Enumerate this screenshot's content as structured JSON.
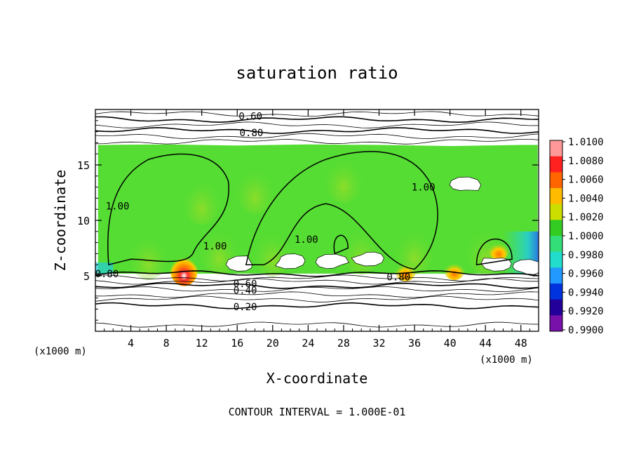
{
  "chart_data": {
    "type": "heatmap",
    "title": "saturation ratio",
    "xlabel": "X-coordinate",
    "ylabel": "Z-coordinate",
    "x_unit_label": "(x1000 m)",
    "y_unit_label": "(x1000 m)",
    "xlim": [
      0,
      50
    ],
    "ylim": [
      0,
      20
    ],
    "x_ticks": [
      "4",
      "8",
      "12",
      "16",
      "20",
      "24",
      "28",
      "32",
      "36",
      "40",
      "44",
      "48"
    ],
    "y_ticks": [
      "5",
      "10",
      "15"
    ],
    "footer": "CONTOUR INTERVAL = 1.000E-01",
    "colorbar": {
      "levels": [
        "1.0100",
        "1.0080",
        "1.0060",
        "1.0040",
        "1.0020",
        "1.0000",
        "0.9980",
        "0.9960",
        "0.9940",
        "0.9920",
        "0.9900"
      ],
      "colors": [
        "#ff9999",
        "#ff2020",
        "#ff6600",
        "#ffbb00",
        "#ccdd00",
        "#33cc22",
        "#33dd77",
        "#22ddcc",
        "#2299ff",
        "#0033dd",
        "#220099",
        "#7711aa"
      ]
    },
    "field_color_default": "#55dd33",
    "contour_labels": [
      {
        "text": "0.60",
        "x": 17.5,
        "y": 19.4
      },
      {
        "text": "0.80",
        "x": 17.6,
        "y": 17.9
      },
      {
        "text": "1.00",
        "x": 2.5,
        "y": 11.3
      },
      {
        "text": "1.00",
        "x": 37.0,
        "y": 13.0
      },
      {
        "text": "1.00",
        "x": 23.8,
        "y": 8.3
      },
      {
        "text": "1.00",
        "x": 13.5,
        "y": 7.7
      },
      {
        "text": "0.80",
        "x": 1.3,
        "y": 5.2
      },
      {
        "text": "0.80",
        "x": 34.2,
        "y": 4.9
      },
      {
        "text": "0.60",
        "x": 16.9,
        "y": 4.3
      },
      {
        "text": "0.40",
        "x": 16.9,
        "y": 3.7
      },
      {
        "text": "0.20",
        "x": 16.9,
        "y": 2.2
      }
    ],
    "horizontal_contours_z": [
      19.6,
      19.1,
      18.6,
      18.1,
      17.6,
      17.1,
      5.2,
      4.8,
      4.5,
      4.1,
      3.8,
      3.3,
      2.9,
      2.3,
      0.6
    ],
    "hotspots": [
      {
        "x": 10.0,
        "z": 5.6,
        "level": "1.0100"
      },
      {
        "x": 40.5,
        "z": 5.5,
        "level": "1.0060"
      },
      {
        "x": 45.5,
        "z": 7.3,
        "level": "1.0040"
      },
      {
        "x": 35.0,
        "z": 5.4,
        "level": "1.0040"
      }
    ],
    "subsaturated_patches": [
      {
        "x": 16.5,
        "z": 6.0
      },
      {
        "x": 22.0,
        "z": 6.4
      },
      {
        "x": 26.5,
        "z": 6.2
      },
      {
        "x": 31.0,
        "z": 6.6
      },
      {
        "x": 41.5,
        "z": 13.2
      },
      {
        "x": 45.5,
        "z": 6.1
      },
      {
        "x": 48.5,
        "z": 5.8
      }
    ]
  }
}
